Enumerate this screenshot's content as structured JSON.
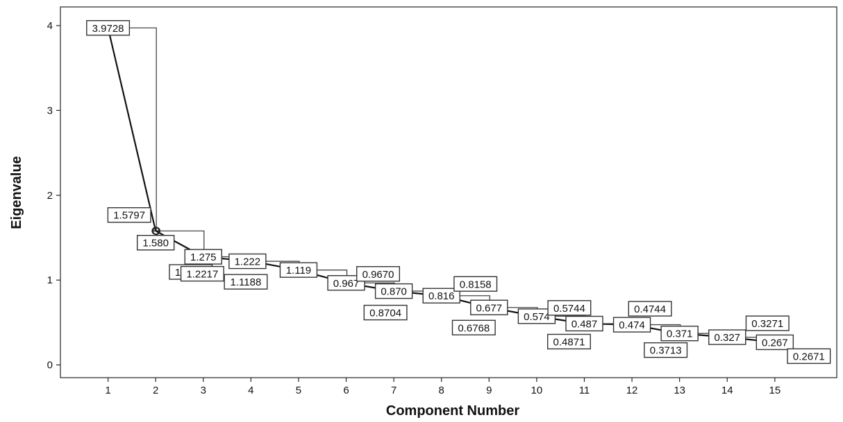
{
  "chart_data": {
    "type": "line",
    "xlabel": "Component Number",
    "ylabel": "Eigenvalue",
    "x": [
      1,
      2,
      3,
      4,
      5,
      6,
      7,
      8,
      9,
      10,
      11,
      12,
      13,
      14,
      15
    ],
    "xlim": [
      0,
      16.3
    ],
    "ylim": [
      -0.15,
      4.22
    ],
    "yticks": [
      0,
      1,
      2,
      3,
      4
    ],
    "grid": false,
    "series": [
      {
        "values": [
          3.973,
          1.58,
          1.275,
          1.222,
          1.119,
          0.967,
          0.87,
          0.816,
          0.677,
          0.574,
          0.487,
          0.474,
          0.371,
          0.327,
          0.267
        ],
        "labels": [
          "3.973",
          "1.580",
          "1.275",
          "1.222",
          "1.119",
          "0.967",
          "0.870",
          "0.816",
          "0.677",
          "0.574",
          "0.487",
          "0.474",
          "0.371",
          "0.327",
          "0.267"
        ]
      },
      {
        "values": [
          3.9728,
          1.5797,
          1.2755,
          1.2217,
          1.1188,
          0.967,
          0.8704,
          0.8158,
          0.6768,
          0.5744,
          0.4871,
          0.4744,
          0.3713,
          0.3271,
          0.2671
        ],
        "labels": [
          "3.9728",
          "1.5797",
          "1.2755",
          "1.2217",
          "1.1188",
          "0.9670",
          "0.8704",
          "0.8158",
          "0.6768",
          "0.5744",
          "0.4871",
          "0.4744",
          "0.3713",
          "0.3271",
          "0.2671"
        ]
      }
    ]
  }
}
